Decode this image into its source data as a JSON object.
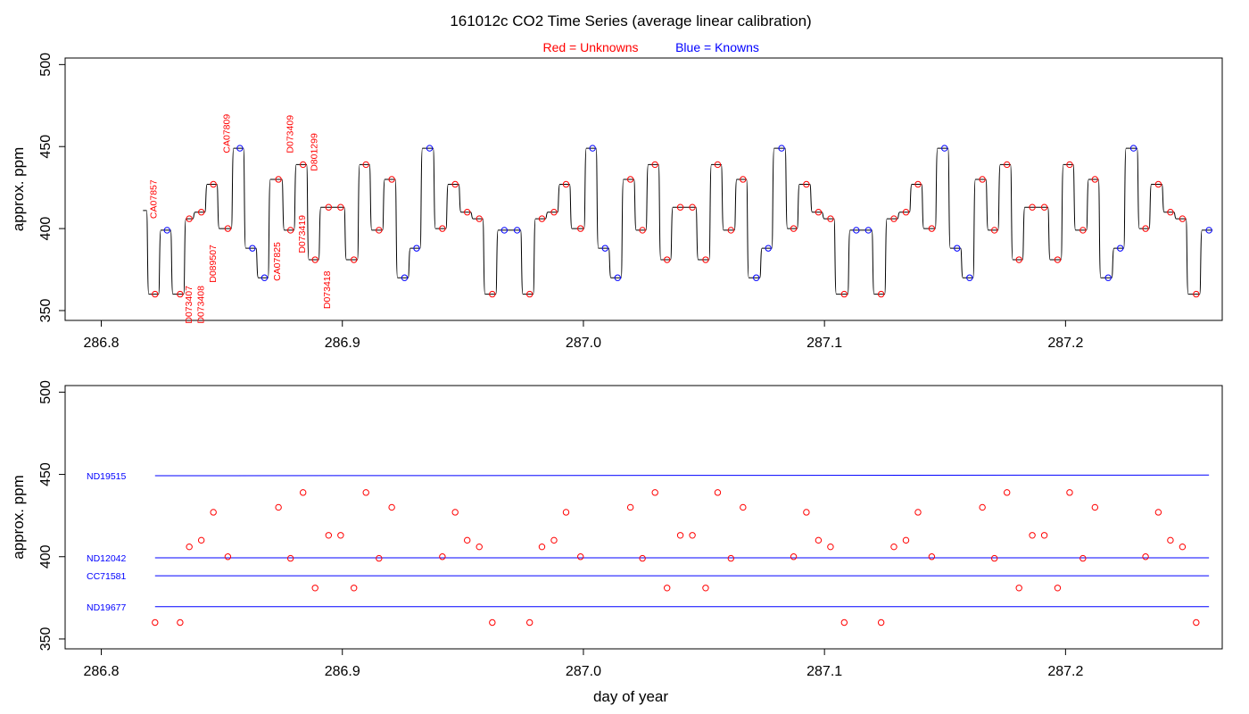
{
  "title": "161012c   CO2 Time Series (average linear calibration)",
  "subtitle": {
    "unknowns": "Red = Unknowns",
    "knowns": "Blue = Knowns"
  },
  "colors": {
    "unknown": "#ff0000",
    "known": "#0000ff",
    "trace": "#000000",
    "frame": "#000000"
  },
  "chart_data": [
    {
      "type": "line",
      "ylabel": "approx. ppm",
      "xlabel": "",
      "xlim": [
        286.785,
        287.265
      ],
      "ylim": [
        344,
        504
      ],
      "xticks": [
        286.8,
        286.9,
        287.0,
        287.1,
        287.2
      ],
      "xtick_labels": [
        "286.8",
        "286.9",
        "287.0",
        "287.1",
        "287.2"
      ],
      "yticks": [
        350,
        400,
        450,
        500
      ],
      "ytick_labels": [
        "350",
        "400",
        "450",
        "500"
      ],
      "trace_start": [
        286.8173,
        411
      ],
      "series": [
        {
          "name": "Unknowns",
          "color": "#ff0000",
          "points": [
            [
              286.8223,
              360
            ],
            [
              286.8327,
              360
            ],
            [
              286.8365,
              406
            ],
            [
              286.8415,
              410
            ],
            [
              286.8465,
              427
            ],
            [
              286.8525,
              400
            ],
            [
              286.8735,
              430
            ],
            [
              286.8785,
              399
            ],
            [
              286.8837,
              439
            ],
            [
              286.8887,
              381
            ],
            [
              286.8943,
              413
            ],
            [
              286.8993,
              413
            ],
            [
              286.9048,
              381
            ],
            [
              286.9098,
              439
            ],
            [
              286.9152,
              399
            ],
            [
              286.9205,
              430
            ],
            [
              286.9415,
              400
            ],
            [
              286.9468,
              427
            ],
            [
              286.9518,
              410
            ],
            [
              286.9568,
              406
            ],
            [
              286.9622,
              360
            ],
            [
              286.9777,
              360
            ],
            [
              286.9828,
              406
            ],
            [
              286.9878,
              410
            ],
            [
              286.9928,
              427
            ],
            [
              286.9988,
              400
            ],
            [
              287.0195,
              430
            ],
            [
              287.0245,
              399
            ],
            [
              287.0297,
              439
            ],
            [
              287.0347,
              381
            ],
            [
              287.0402,
              413
            ],
            [
              287.0452,
              413
            ],
            [
              287.0507,
              381
            ],
            [
              287.0557,
              439
            ],
            [
              287.0612,
              399
            ],
            [
              287.0662,
              430
            ],
            [
              287.0872,
              400
            ],
            [
              287.0925,
              427
            ],
            [
              287.0975,
              410
            ],
            [
              287.1025,
              406
            ],
            [
              287.1082,
              360
            ],
            [
              287.1235,
              360
            ],
            [
              287.1288,
              406
            ],
            [
              287.1338,
              410
            ],
            [
              287.1388,
              427
            ],
            [
              287.1445,
              400
            ],
            [
              287.1655,
              430
            ],
            [
              287.1705,
              399
            ],
            [
              287.1757,
              439
            ],
            [
              287.1807,
              381
            ],
            [
              287.1862,
              413
            ],
            [
              287.1912,
              413
            ],
            [
              287.1967,
              381
            ],
            [
              287.2017,
              439
            ],
            [
              287.2072,
              399
            ],
            [
              287.2122,
              430
            ],
            [
              287.2332,
              400
            ],
            [
              287.2385,
              427
            ],
            [
              287.2435,
              410
            ],
            [
              287.2485,
              406
            ],
            [
              287.2542,
              360
            ]
          ]
        },
        {
          "name": "Knowns",
          "color": "#0000ff",
          "points": [
            [
              286.8273,
              399
            ],
            [
              286.8575,
              449
            ],
            [
              286.8627,
              388
            ],
            [
              286.8677,
              370
            ],
            [
              286.9258,
              370
            ],
            [
              286.9308,
              388
            ],
            [
              286.9362,
              449
            ],
            [
              286.9672,
              399
            ],
            [
              286.9725,
              399
            ],
            [
              287.0038,
              449
            ],
            [
              287.009,
              388
            ],
            [
              287.0142,
              370
            ],
            [
              287.0717,
              370
            ],
            [
              287.0767,
              388
            ],
            [
              287.0822,
              449
            ],
            [
              287.1132,
              399
            ],
            [
              287.1182,
              399
            ],
            [
              287.1498,
              449
            ],
            [
              287.155,
              388
            ],
            [
              287.1602,
              370
            ],
            [
              287.2177,
              370
            ],
            [
              287.2227,
              388
            ],
            [
              287.2282,
              449
            ],
            [
              287.2595,
              399
            ]
          ]
        }
      ],
      "labels": [
        {
          "text": "CA07857",
          "x": 286.8215,
          "y": 406
        },
        {
          "text": "D073407",
          "x": 286.836,
          "y": 342
        },
        {
          "text": "D073408",
          "x": 286.841,
          "y": 342
        },
        {
          "text": "D089507",
          "x": 286.846,
          "y": 367
        },
        {
          "text": "CA07809",
          "x": 286.8518,
          "y": 446
        },
        {
          "text": "CA07825",
          "x": 286.8727,
          "y": 368
        },
        {
          "text": "D073409",
          "x": 286.878,
          "y": 446
        },
        {
          "text": "D073419",
          "x": 286.883,
          "y": 385
        },
        {
          "text": "D801299",
          "x": 286.888,
          "y": 435
        },
        {
          "text": "D073418",
          "x": 286.8935,
          "y": 351
        }
      ]
    },
    {
      "type": "scatter",
      "ylabel": "approx. ppm",
      "xlabel": "day of year",
      "xlim": [
        286.785,
        287.265
      ],
      "ylim": [
        344,
        504
      ],
      "xticks": [
        286.8,
        286.9,
        287.0,
        287.1,
        287.2
      ],
      "xtick_labels": [
        "286.8",
        "286.9",
        "287.0",
        "287.1",
        "287.2"
      ],
      "yticks": [
        350,
        400,
        450,
        500
      ],
      "ytick_labels": [
        "350",
        "400",
        "450",
        "500"
      ],
      "reference_lines": [
        {
          "name": "ND19515",
          "y0": 449.2,
          "y1": 449.6,
          "x0": 286.8223,
          "x1": 287.2595
        },
        {
          "name": "ND12042",
          "y0": 399.3,
          "y1": 399.3,
          "x0": 286.8223,
          "x1": 287.2595
        },
        {
          "name": "CC71581",
          "y0": 388.4,
          "y1": 388.4,
          "x0": 286.8223,
          "x1": 287.2595
        },
        {
          "name": "ND19677",
          "y0": 369.6,
          "y1": 369.6,
          "x0": 286.8223,
          "x1": 287.2595
        }
      ],
      "series": [
        {
          "name": "Unknowns",
          "color": "#ff0000",
          "points": [
            [
              286.8223,
              360
            ],
            [
              286.8327,
              360
            ],
            [
              286.8365,
              406
            ],
            [
              286.8415,
              410
            ],
            [
              286.8465,
              427
            ],
            [
              286.8525,
              400
            ],
            [
              286.8735,
              430
            ],
            [
              286.8785,
              399
            ],
            [
              286.8837,
              439
            ],
            [
              286.8887,
              381
            ],
            [
              286.8943,
              413
            ],
            [
              286.8993,
              413
            ],
            [
              286.9048,
              381
            ],
            [
              286.9098,
              439
            ],
            [
              286.9152,
              399
            ],
            [
              286.9205,
              430
            ],
            [
              286.9415,
              400
            ],
            [
              286.9468,
              427
            ],
            [
              286.9518,
              410
            ],
            [
              286.9568,
              406
            ],
            [
              286.9622,
              360
            ],
            [
              286.9777,
              360
            ],
            [
              286.9828,
              406
            ],
            [
              286.9878,
              410
            ],
            [
              286.9928,
              427
            ],
            [
              286.9988,
              400
            ],
            [
              287.0195,
              430
            ],
            [
              287.0245,
              399
            ],
            [
              287.0297,
              439
            ],
            [
              287.0347,
              381
            ],
            [
              287.0402,
              413
            ],
            [
              287.0452,
              413
            ],
            [
              287.0507,
              381
            ],
            [
              287.0557,
              439
            ],
            [
              287.0612,
              399
            ],
            [
              287.0662,
              430
            ],
            [
              287.0872,
              400
            ],
            [
              287.0925,
              427
            ],
            [
              287.0975,
              410
            ],
            [
              287.1025,
              406
            ],
            [
              287.1082,
              360
            ],
            [
              287.1235,
              360
            ],
            [
              287.1288,
              406
            ],
            [
              287.1338,
              410
            ],
            [
              287.1388,
              427
            ],
            [
              287.1445,
              400
            ],
            [
              287.1655,
              430
            ],
            [
              287.1705,
              399
            ],
            [
              287.1757,
              439
            ],
            [
              287.1807,
              381
            ],
            [
              287.1862,
              413
            ],
            [
              287.1912,
              413
            ],
            [
              287.1967,
              381
            ],
            [
              287.2017,
              439
            ],
            [
              287.2072,
              399
            ],
            [
              287.2122,
              430
            ],
            [
              287.2332,
              400
            ],
            [
              287.2385,
              427
            ],
            [
              287.2435,
              410
            ],
            [
              287.2485,
              406
            ],
            [
              287.2542,
              360
            ]
          ]
        }
      ]
    }
  ]
}
